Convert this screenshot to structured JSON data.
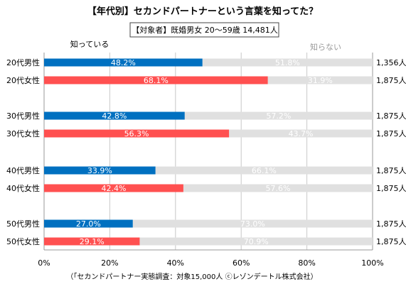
{
  "chart_data": {
    "type": "bar",
    "title": "【年代別】セカンドパートナーという言葉を知ってた？",
    "subtitle": "【対象者】既婚男女 20～59歳 14,481人",
    "series_labels": {
      "known": "知っている",
      "unknown": "知らない"
    },
    "categories": [
      "20代男性",
      "20代女性",
      "30代男性",
      "30代女性",
      "40代男性",
      "40代女性",
      "50代男性",
      "50代女性"
    ],
    "known_values": [
      48.2,
      68.1,
      42.8,
      56.3,
      33.9,
      42.4,
      27.0,
      29.1
    ],
    "unknown_values": [
      51.8,
      31.9,
      57.2,
      43.7,
      66.1,
      57.6,
      73.0,
      70.9
    ],
    "known_labels": [
      "48.2%",
      "68.1%",
      "42.8%",
      "56.3%",
      "33.9%",
      "42.4%",
      "27.0%",
      "29.1%"
    ],
    "unknown_labels": [
      "51.8%",
      "31.9%",
      "57.2%",
      "43.7%",
      "66.1%",
      "57.6%",
      "73.0%",
      "70.9%"
    ],
    "counts": [
      "1,356人",
      "1,875人",
      "1,875人",
      "1,875人",
      "1,875人",
      "1,875人",
      "1,875人",
      "1,875人"
    ],
    "x_ticks": [
      "0%",
      "20%",
      "40%",
      "60%",
      "80%",
      "100%"
    ],
    "xlim": [
      0,
      100
    ],
    "source": "（「セカンドパートナー実態調査：対象15,000人 ⓒレゾンデートル株式会社）",
    "colors": {
      "male": "#0070c0",
      "female": "#ff5050",
      "unknown": "#e0e0e0",
      "grid": "#c8c8c8"
    }
  }
}
